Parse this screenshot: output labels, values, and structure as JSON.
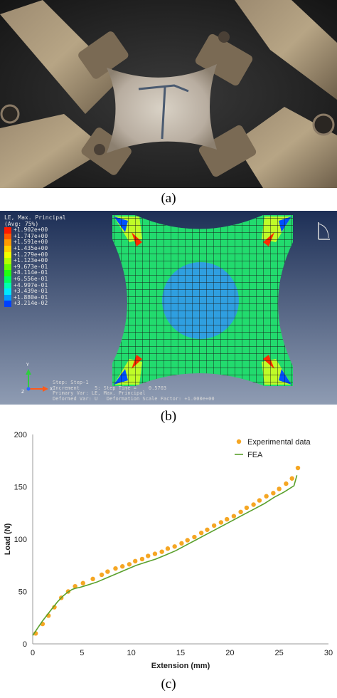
{
  "captions": {
    "a": "(a)",
    "b": "(b)",
    "c": "(c)"
  },
  "fea_panel": {
    "legend_title": "LE, Max. Principal\n(Avg: 75%)",
    "legend_entries": [
      {
        "label": "+1.902e+00",
        "color": "#ff1a00"
      },
      {
        "label": "+1.747e+00",
        "color": "#ff5a00"
      },
      {
        "label": "+1.591e+00",
        "color": "#ff9a00"
      },
      {
        "label": "+1.435e+00",
        "color": "#ffd000"
      },
      {
        "label": "+1.279e+00",
        "color": "#f2ff00"
      },
      {
        "label": "+1.123e+00",
        "color": "#b4ff00"
      },
      {
        "label": "+9.673e-01",
        "color": "#6aff00"
      },
      {
        "label": "+8.114e-01",
        "color": "#20ff10"
      },
      {
        "label": "+6.556e-01",
        "color": "#00ff60"
      },
      {
        "label": "+4.997e-01",
        "color": "#00ffb0"
      },
      {
        "label": "+3.439e-01",
        "color": "#00e8ff"
      },
      {
        "label": "+1.880e-01",
        "color": "#009cff"
      },
      {
        "label": "+3.214e-02",
        "color": "#0040ff"
      }
    ],
    "step_info": "Step: Step-1\nIncrement     5: Step Time =    0.5703\nPrimary Var: LE, Max. Principal\nDeformed Var: U   Deformation Scale Factor: +1.000e+00",
    "triad_labels": {
      "y": "Y",
      "z": "Z",
      "x": "X"
    }
  },
  "chart_data": {
    "type": "scatter",
    "xlabel": "Extension (mm)",
    "ylabel": "Load (N)",
    "xlim": [
      0,
      30
    ],
    "ylim": [
      0,
      200
    ],
    "xticks": [
      0,
      5,
      10,
      15,
      20,
      25,
      30
    ],
    "yticks": [
      0,
      50,
      100,
      150,
      200
    ],
    "grid": false,
    "legend_position": "top-right",
    "series": [
      {
        "name": "Experimental data",
        "kind": "points",
        "color": "#f5a623",
        "x": [
          0.3,
          1.0,
          1.6,
          2.2,
          2.9,
          3.6,
          4.3,
          5.1,
          6.1,
          7.0,
          7.6,
          8.4,
          9.1,
          9.8,
          10.4,
          11.1,
          11.7,
          12.4,
          13.1,
          13.7,
          14.4,
          15.1,
          15.7,
          16.4,
          17.1,
          17.7,
          18.4,
          19.1,
          19.7,
          20.4,
          21.1,
          21.7,
          22.4,
          23.0,
          23.7,
          24.4,
          25.0,
          25.7,
          26.3,
          26.9
        ],
        "y": [
          10,
          19,
          27,
          35,
          44,
          50,
          55,
          58,
          62,
          66,
          69,
          72,
          74,
          76,
          79,
          81,
          84,
          86,
          88,
          91,
          93,
          96,
          99,
          102,
          106,
          109,
          113,
          116,
          119,
          122,
          126,
          130,
          133,
          137,
          141,
          144,
          148,
          153,
          158,
          168
        ]
      },
      {
        "name": "FEA",
        "kind": "line",
        "color": "#5aa02c",
        "x": [
          0.0,
          0.5,
          1.0,
          1.5,
          2.0,
          2.5,
          3.0,
          3.5,
          4.0,
          4.3,
          4.8,
          5.5,
          6.5,
          7.5,
          8.5,
          9.5,
          10.5,
          11.5,
          12.5,
          13.5,
          14.5,
          15.5,
          16.5,
          17.5,
          18.5,
          19.5,
          20.5,
          21.5,
          22.5,
          23.5,
          24.5,
          25.5,
          26.5,
          26.8
        ],
        "y": [
          8,
          15,
          22,
          28,
          34,
          40,
          45,
          49,
          52,
          53,
          54,
          56,
          59,
          63,
          67,
          71,
          75,
          78,
          81,
          85,
          89,
          94,
          99,
          104,
          109,
          114,
          119,
          124,
          129,
          134,
          140,
          145,
          151,
          161
        ]
      }
    ]
  }
}
